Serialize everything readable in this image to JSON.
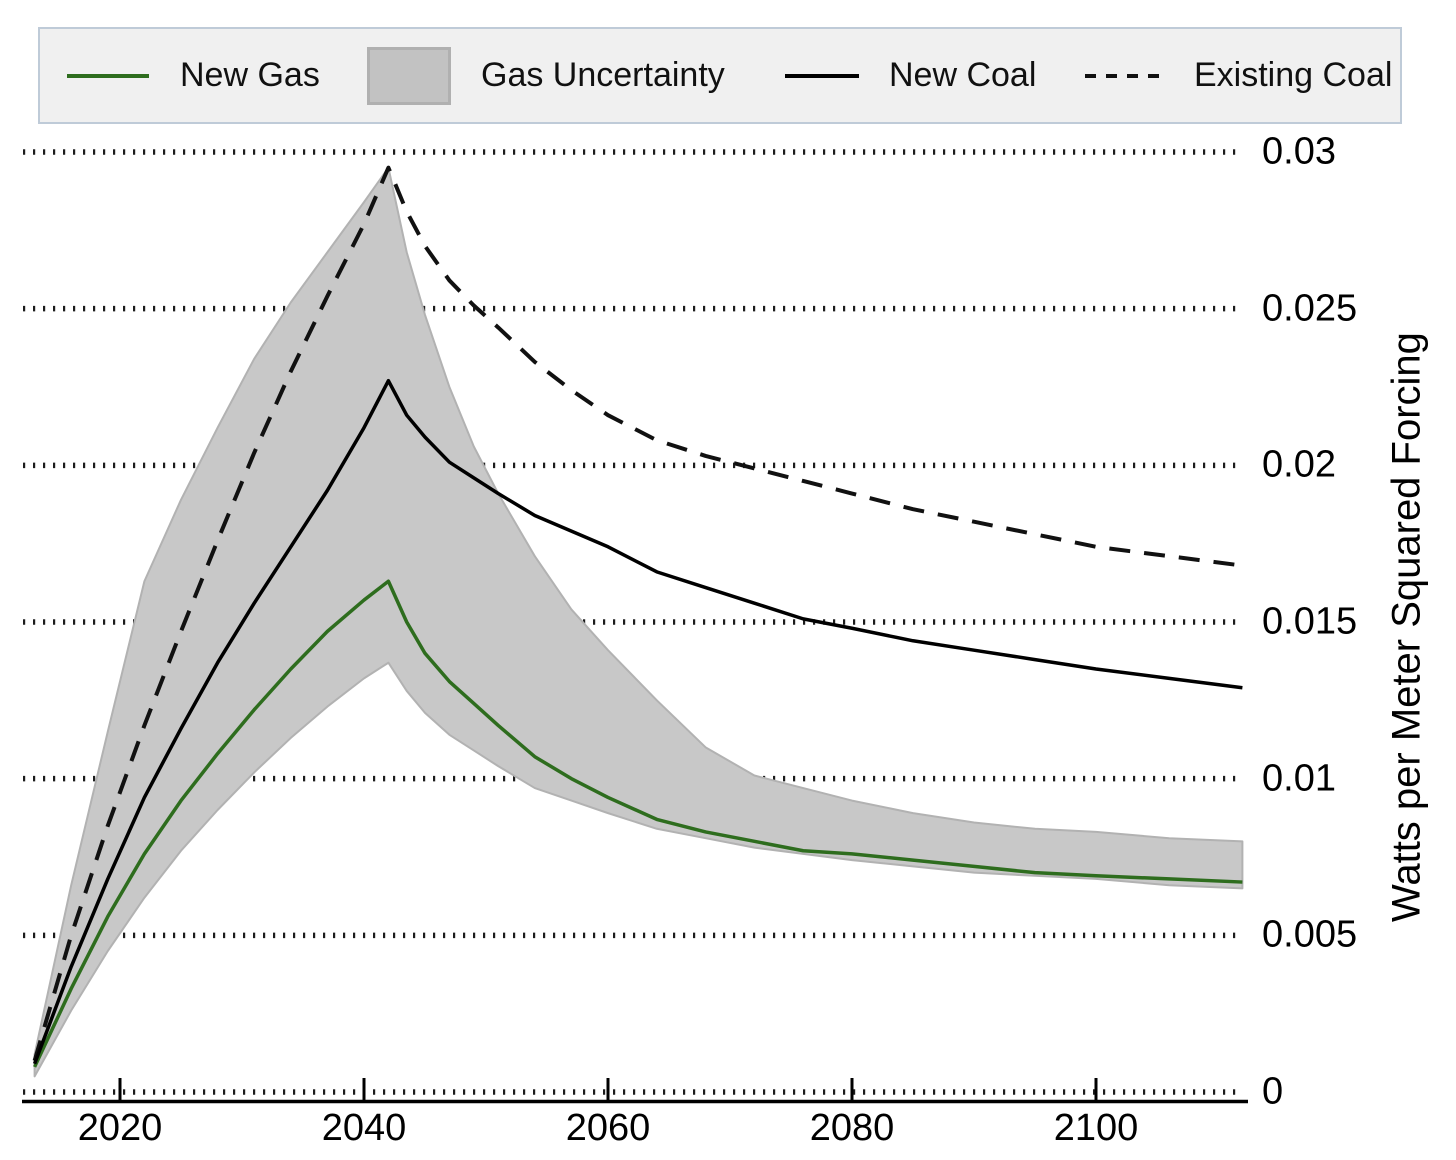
{
  "legend": {
    "items": [
      {
        "label": "New Gas",
        "swatch": "green-line"
      },
      {
        "label": "Gas Uncertainty",
        "swatch": "gray-box"
      },
      {
        "label": "New Coal",
        "swatch": "black-solid-line"
      },
      {
        "label": "Existing Coal",
        "swatch": "black-dashed-line"
      }
    ]
  },
  "chart_data": {
    "type": "line",
    "title": "",
    "xlabel": "",
    "ylabel": "Watts per Meter Squared Forcing",
    "grid": "dotted horizontal gridlines",
    "legend_position": "top",
    "xlim": [
      2012,
      2112.5
    ],
    "ylim": [
      0,
      0.0304
    ],
    "x_years": [
      2013,
      2016,
      2019,
      2022,
      2025,
      2028,
      2031,
      2034,
      2037,
      2040,
      2042,
      2043.5,
      2045,
      2047,
      2049,
      2051,
      2054,
      2057,
      2060,
      2064,
      2068,
      2072,
      2076,
      2080,
      2085,
      2090,
      2095,
      2100,
      2106,
      2112
    ],
    "series": [
      {
        "name": "New Gas",
        "color": "#2e6d1e",
        "style": "solid",
        "width": 3.5,
        "values": [
          0.0008,
          0.0033,
          0.0056,
          0.0076,
          0.0093,
          0.0108,
          0.0122,
          0.0135,
          0.0147,
          0.0157,
          0.0163,
          0.015,
          0.014,
          0.0131,
          0.0124,
          0.0117,
          0.0107,
          0.01,
          0.0094,
          0.0087,
          0.0083,
          0.008,
          0.0077,
          0.0076,
          0.0074,
          0.0072,
          0.007,
          0.0069,
          0.0068,
          0.0067
        ]
      },
      {
        "name": "New Coal",
        "color": "#000000",
        "style": "solid",
        "width": 3.5,
        "values": [
          0.0009,
          0.004,
          0.0068,
          0.0094,
          0.0116,
          0.0137,
          0.0156,
          0.0174,
          0.0192,
          0.0212,
          0.0227,
          0.0216,
          0.0209,
          0.0201,
          0.0196,
          0.0191,
          0.0184,
          0.0179,
          0.0174,
          0.0166,
          0.0161,
          0.0156,
          0.0151,
          0.0148,
          0.0144,
          0.0141,
          0.0138,
          0.0135,
          0.0132,
          0.0129
        ]
      },
      {
        "name": "Existing Coal",
        "color": "#111111",
        "style": "dashed",
        "width": 4,
        "values": [
          0.001,
          0.005,
          0.0085,
          0.0117,
          0.0147,
          0.0176,
          0.0204,
          0.023,
          0.0254,
          0.0277,
          0.0295,
          0.0281,
          0.027,
          0.0259,
          0.0251,
          0.0244,
          0.0233,
          0.0224,
          0.0216,
          0.0208,
          0.0203,
          0.0199,
          0.0195,
          0.0191,
          0.0186,
          0.0182,
          0.0178,
          0.0174,
          0.0171,
          0.0168
        ]
      }
    ],
    "band": {
      "name": "Gas Uncertainty",
      "fill": "#c8c8c8",
      "edge": "#b2b2b2",
      "upper": [
        0.0012,
        0.0066,
        0.0115,
        0.0163,
        0.0189,
        0.0212,
        0.0234,
        0.0252,
        0.0268,
        0.0284,
        0.0295,
        0.0268,
        0.0248,
        0.0225,
        0.0206,
        0.0191,
        0.0171,
        0.0154,
        0.0141,
        0.0125,
        0.011,
        0.0101,
        0.0097,
        0.0093,
        0.0089,
        0.0086,
        0.0084,
        0.0083,
        0.0081,
        0.008
      ],
      "lower": [
        0.0005,
        0.0026,
        0.0045,
        0.0062,
        0.0077,
        0.009,
        0.0102,
        0.0113,
        0.0123,
        0.0132,
        0.0137,
        0.0128,
        0.0121,
        0.0114,
        0.0109,
        0.0104,
        0.0097,
        0.0093,
        0.0089,
        0.0084,
        0.0081,
        0.0078,
        0.0076,
        0.0074,
        0.0072,
        0.007,
        0.0069,
        0.0068,
        0.0066,
        0.0065
      ]
    },
    "xticks": {
      "values": [
        2020,
        2040,
        2060,
        2080,
        2100
      ],
      "labels": [
        "2020",
        "2040",
        "2060",
        "2080",
        "2100"
      ]
    },
    "yticks": {
      "values": [
        0,
        0.005,
        0.01,
        0.015,
        0.02,
        0.025,
        0.03
      ],
      "labels": [
        "0",
        "0.005",
        "0.01",
        "0.015",
        "0.02",
        "0.025",
        "0.03"
      ]
    },
    "colors": {
      "grid": "#1c1c1c",
      "axis": "#000000"
    }
  }
}
